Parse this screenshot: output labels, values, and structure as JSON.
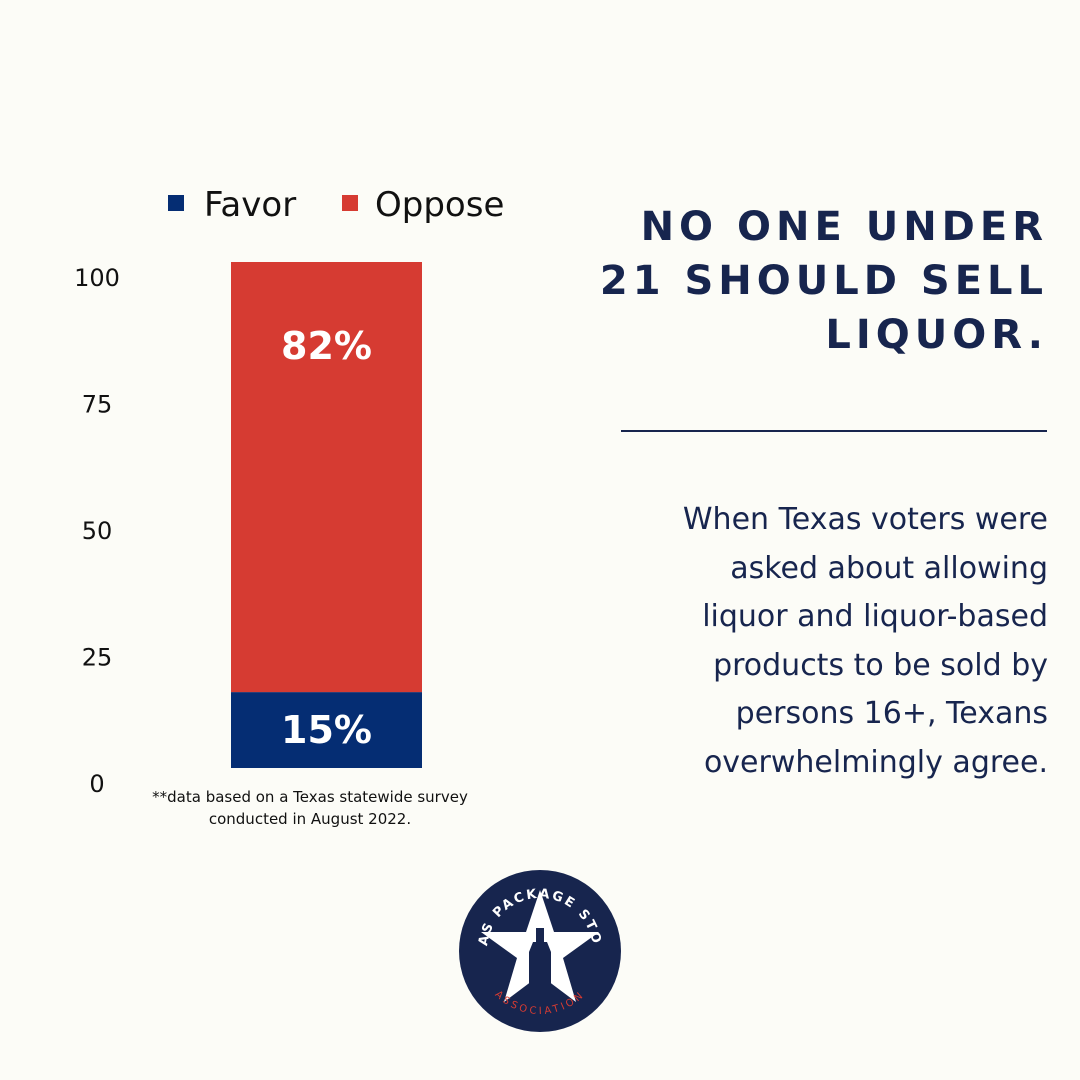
{
  "chart_data": {
    "type": "bar",
    "stacked": true,
    "categories": [
      ""
    ],
    "series": [
      {
        "name": "Favor",
        "values": [
          15
        ],
        "label": "15%",
        "color": "#052d73"
      },
      {
        "name": "Oppose",
        "values": [
          82
        ],
        "label": "82%",
        "color": "#d63b32"
      }
    ],
    "yticks": [
      "100",
      "75",
      "50",
      "25",
      "0"
    ],
    "ylim": [
      0,
      100
    ],
    "title": "",
    "xlabel": "",
    "ylabel": "",
    "legend_position": "top"
  },
  "footnote": {
    "line1": "**data based on a Texas statewide survey",
    "line2": "conducted in August 2022."
  },
  "headline": {
    "line1": "NO ONE UNDER",
    "line2": "21 SHOULD SELL",
    "line3": "LIQUOR."
  },
  "body": {
    "line1": "When Texas voters were",
    "line2": "asked about allowing",
    "line3": "liquor and liquor-based",
    "line4": "products to be sold by",
    "line5": "persons 16+, Texans",
    "line6": "overwhelmingly agree."
  },
  "logo": {
    "top_text": "TEXAS PACKAGE STORES",
    "bottom_text": "ASSOCIATION"
  },
  "colors": {
    "navy": "#17254e",
    "favor": "#052d73",
    "oppose": "#d63b32",
    "background": "#fcfcf7"
  }
}
